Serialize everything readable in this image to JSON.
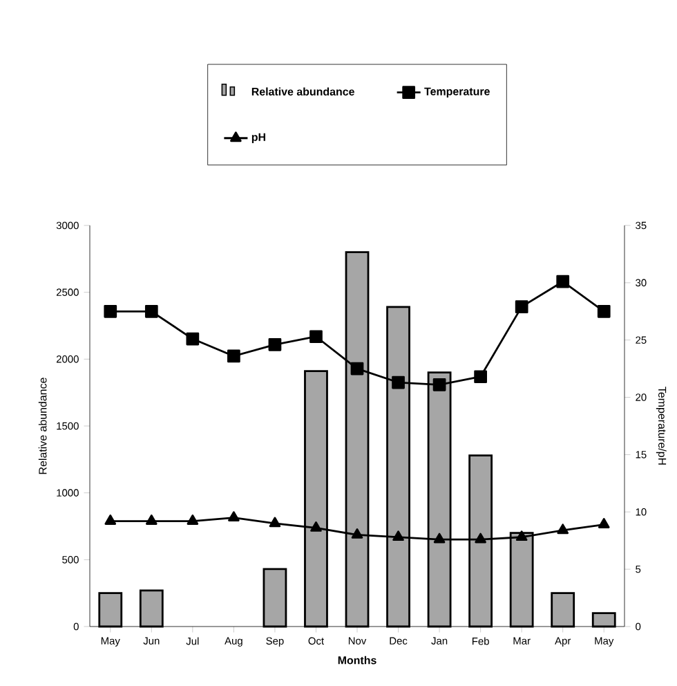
{
  "chart_data": {
    "type": "bar",
    "xlabel": "Months",
    "ylabel": "Relative abundance",
    "y2label": "Temperature/pH",
    "categories": [
      "May",
      "Jun",
      "Jul",
      "Aug",
      "Sep",
      "Oct",
      "Nov",
      "Dec",
      "Jan",
      "Feb",
      "Mar",
      "Apr",
      "May"
    ],
    "series": [
      {
        "name": "Relative abundance",
        "color": "#a6a6a6",
        "values": [
          250,
          270,
          null,
          null,
          430,
          1910,
          2800,
          2390,
          1900,
          1280,
          700,
          250,
          100
        ]
      },
      {
        "name": "Temperature",
        "type": "line",
        "axis": "y2",
        "color": "#000000",
        "marker": "square",
        "line_style": "solid",
        "values": [
          27.5,
          27.5,
          25.1,
          23.6,
          24.6,
          25.3,
          22.5,
          21.3,
          21.1,
          21.8,
          27.9,
          30.1,
          27.5
        ]
      },
      {
        "name": "pH",
        "type": "line",
        "axis": "y2",
        "color": "#000000",
        "marker": "triangle",
        "line_style": "solid",
        "values": [
          9.2,
          9.2,
          9.2,
          9.5,
          9.0,
          8.6,
          8.0,
          7.8,
          7.6,
          7.6,
          7.8,
          8.4,
          8.9
        ]
      }
    ],
    "ylim": [
      0,
      3000
    ],
    "yticks": [
      0,
      500,
      1000,
      1500,
      2000,
      2500,
      3000
    ],
    "y2lim": [
      0,
      35
    ],
    "y2ticks": [
      0,
      5,
      10,
      15,
      20,
      25,
      30,
      35
    ],
    "grid": false,
    "legend": "top"
  }
}
